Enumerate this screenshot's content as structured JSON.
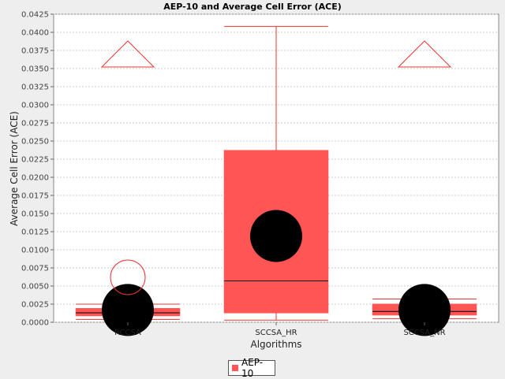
{
  "chart_data": {
    "type": "boxplot",
    "title": "AEP-10 and Average Cell Error (ACE)",
    "xlabel": "Algorithms",
    "ylabel": "Average Cell Error (ACE)",
    "ylim": [
      0,
      0.0425
    ],
    "yticks": [
      "0.0000",
      "0.0025",
      "0.0050",
      "0.0075",
      "0.0100",
      "0.0125",
      "0.0150",
      "0.0175",
      "0.0200",
      "0.0225",
      "0.0250",
      "0.0275",
      "0.0300",
      "0.0325",
      "0.0350",
      "0.0375",
      "0.0400",
      "0.0425"
    ],
    "grid": true,
    "legend_position": "bottom",
    "series": [
      {
        "name": "AEP-10",
        "color": "#ff5555"
      }
    ],
    "categories": [
      "RCCSA",
      "SCCSA_HR",
      "SCCSA_NR"
    ],
    "boxes": [
      {
        "category": "RCCSA",
        "min": 0.0004,
        "q1": 0.0009,
        "median": 0.0013,
        "mean": 0.0017,
        "q3": 0.0019,
        "max": 0.0025,
        "outliers": [
          0.0062
        ],
        "far_out_above": true
      },
      {
        "category": "SCCSA_HR",
        "min": 0.0003,
        "q1": 0.0013,
        "median": 0.0057,
        "mean": 0.0119,
        "q3": 0.0237,
        "max": 0.0408,
        "outliers": [],
        "far_out_above": false
      },
      {
        "category": "SCCSA_NR",
        "min": 0.0005,
        "q1": 0.001,
        "median": 0.0015,
        "mean": 0.0017,
        "q3": 0.0025,
        "max": 0.0032,
        "outliers": [],
        "far_out_above": true
      }
    ]
  },
  "colors": {
    "box_fill": "#ff5555",
    "whisker": "#ee3333",
    "mean": "#000000",
    "plot_bg": "#ffffff",
    "grid": "#cccccc"
  }
}
